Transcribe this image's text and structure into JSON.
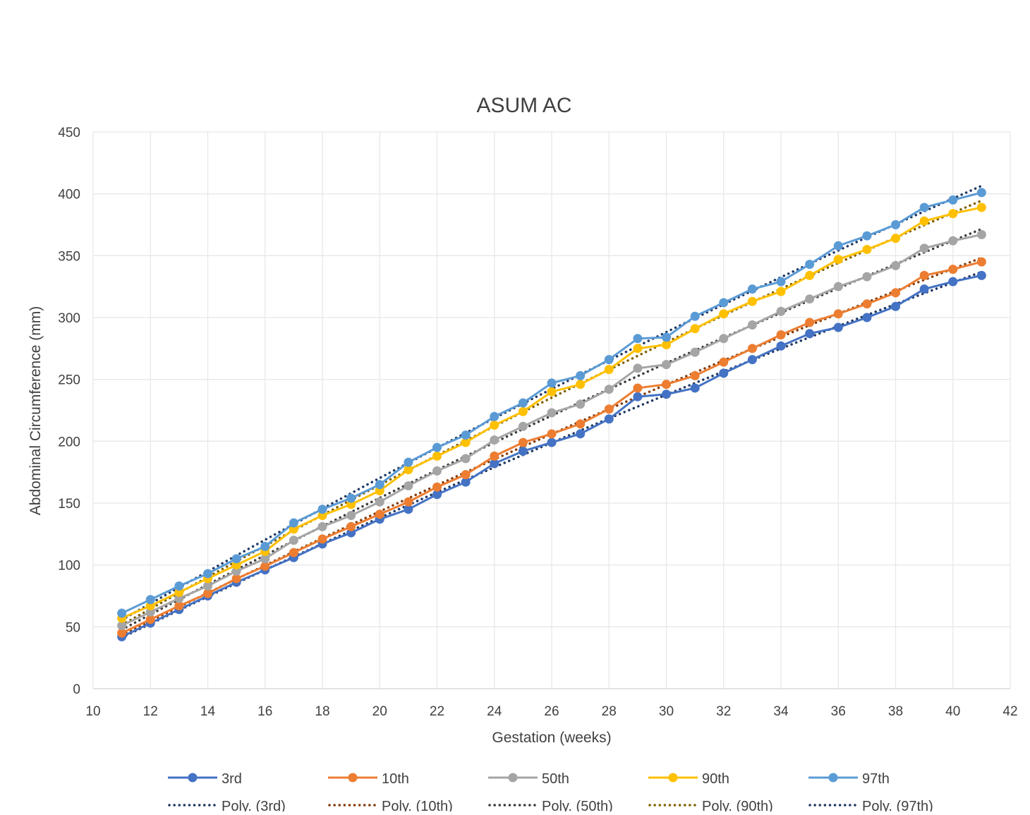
{
  "chart_data": {
    "type": "line",
    "title": "ASUM AC",
    "xlabel": "Gestation (weeks)",
    "ylabel": "Abdominal Circumference (mm)",
    "xlim": [
      10,
      42
    ],
    "ylim": [
      0,
      450
    ],
    "xticks": [
      10,
      12,
      14,
      16,
      18,
      20,
      22,
      24,
      26,
      28,
      30,
      32,
      34,
      36,
      38,
      40,
      42
    ],
    "yticks": [
      0,
      50,
      100,
      150,
      200,
      250,
      300,
      350,
      400,
      450
    ],
    "grid": true,
    "legend_position": "bottom",
    "x": [
      11,
      12,
      13,
      14,
      15,
      16,
      17,
      18,
      19,
      20,
      21,
      22,
      23,
      24,
      25,
      26,
      27,
      28,
      29,
      30,
      31,
      32,
      33,
      34,
      35,
      36,
      37,
      38,
      39,
      40,
      41
    ],
    "series": [
      {
        "name": "3rd",
        "color": "#4472C4",
        "values": [
          42,
          53,
          64,
          75,
          86,
          96,
          106,
          117,
          126,
          137,
          145,
          157,
          167,
          182,
          192,
          199,
          206,
          218,
          236,
          238,
          243,
          255,
          266,
          277,
          287,
          292,
          300,
          309,
          323,
          329,
          334
        ]
      },
      {
        "name": "10th",
        "color": "#ED7D31",
        "values": [
          45,
          56,
          67,
          77,
          89,
          99,
          110,
          121,
          131,
          141,
          151,
          163,
          173,
          188,
          199,
          206,
          214,
          226,
          243,
          246,
          253,
          264,
          275,
          286,
          296,
          303,
          311,
          320,
          334,
          339,
          345
        ]
      },
      {
        "name": "50th",
        "color": "#A5A5A5",
        "values": [
          51,
          62,
          73,
          83,
          95,
          105,
          120,
          131,
          140,
          151,
          164,
          176,
          186,
          201,
          212,
          223,
          230,
          242,
          259,
          262,
          272,
          283,
          294,
          305,
          315,
          325,
          333,
          342,
          356,
          362,
          367
        ]
      },
      {
        "name": "90th",
        "color": "#FFC000",
        "values": [
          57,
          67,
          78,
          89,
          100,
          111,
          129,
          140,
          149,
          160,
          177,
          188,
          199,
          213,
          224,
          240,
          246,
          258,
          275,
          278,
          291,
          303,
          313,
          321,
          334,
          347,
          355,
          364,
          378,
          384,
          389
        ]
      },
      {
        "name": "97th",
        "color": "#5B9BD5",
        "values": [
          61,
          72,
          83,
          93,
          105,
          115,
          134,
          145,
          154,
          165,
          183,
          195,
          205,
          220,
          231,
          247,
          253,
          266,
          283,
          284,
          301,
          312,
          323,
          329,
          343,
          358,
          366,
          375,
          389,
          395,
          401
        ]
      }
    ],
    "trendlines": [
      {
        "name": "Poly. (3rd)",
        "type": "polynomial",
        "order": 2,
        "of": "3rd",
        "color": "#1F3864"
      },
      {
        "name": "Poly. (10th)",
        "type": "polynomial",
        "order": 2,
        "of": "10th",
        "color": "#843C0C"
      },
      {
        "name": "Poly. (50th)",
        "type": "polynomial",
        "order": 2,
        "of": "50th",
        "color": "#3A3A3A"
      },
      {
        "name": "Poly. (90th)",
        "type": "polynomial",
        "order": 2,
        "of": "90th",
        "color": "#7F6000"
      },
      {
        "name": "Poly. (97th)",
        "type": "polynomial",
        "order": 2,
        "of": "97th",
        "color": "#1F3864"
      }
    ]
  }
}
